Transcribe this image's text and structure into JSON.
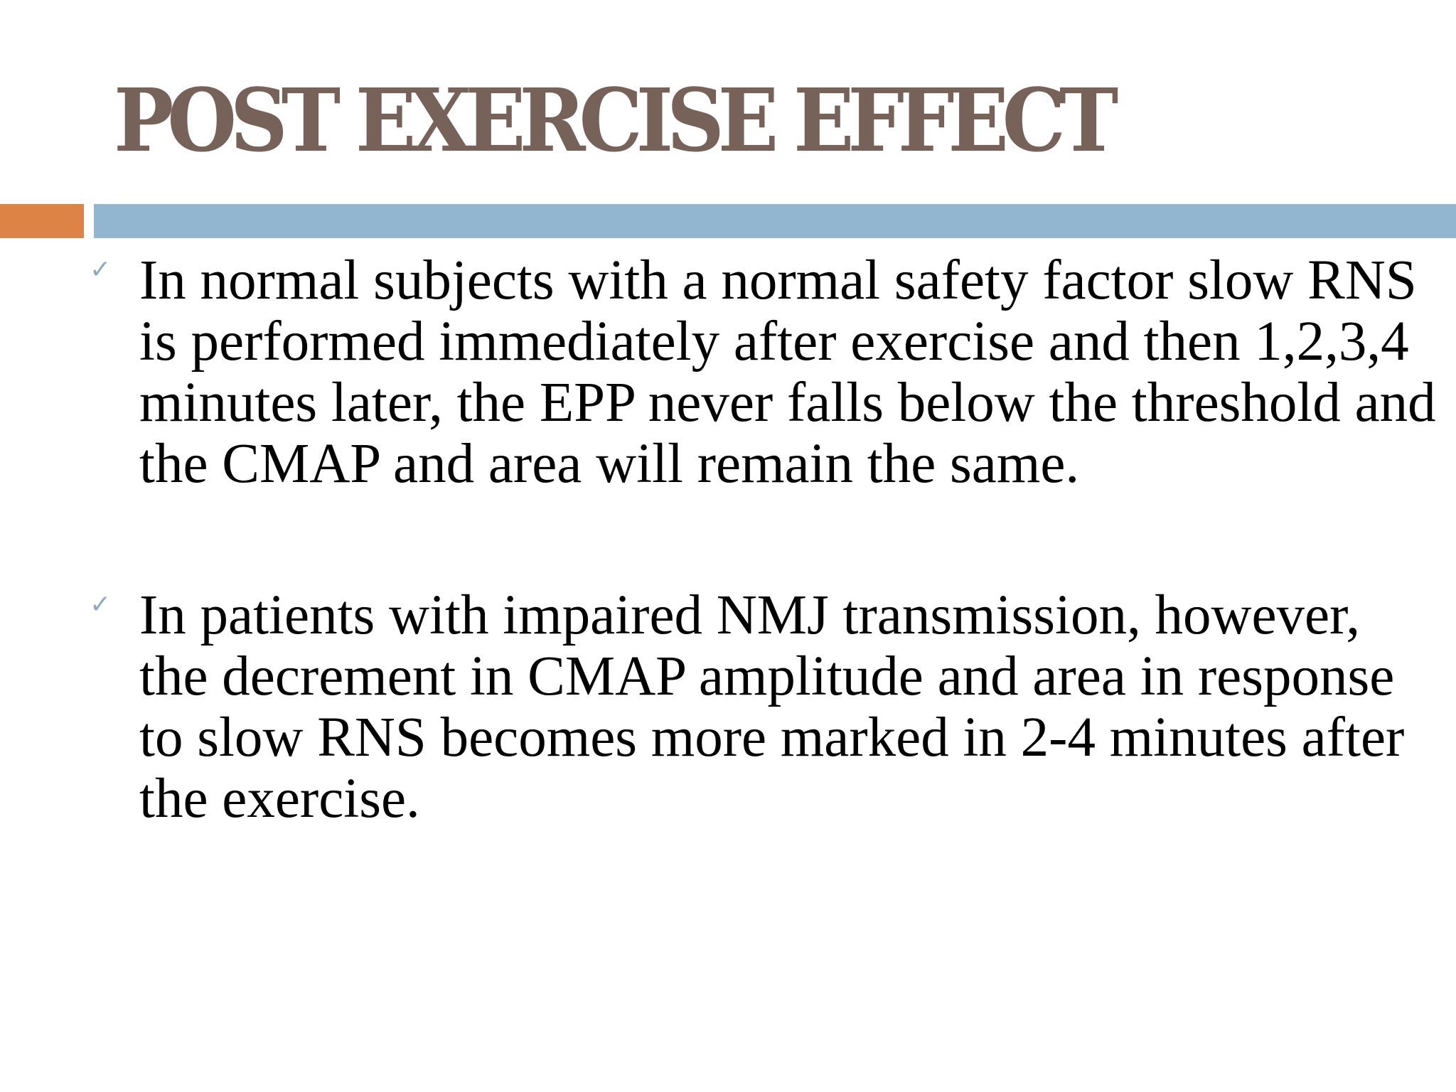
{
  "slide": {
    "title": "POST EXERCISE EFFECT",
    "bullets": [
      {
        "icon": "check-icon",
        "text": "In normal subjects with a normal safety factor slow RNS is performed immediately after exercise and then 1,2,3,4 minutes later, the EPP never falls below the threshold and the CMAP and area will remain the same."
      },
      {
        "icon": "check-icon",
        "text": "In patients with impaired NMJ transmission, however, the decrement in CMAP amplitude and area in response to slow RNS becomes more marked in 2-4 minutes after the exercise."
      }
    ],
    "colors": {
      "title": "#77625a",
      "accent_bar": "#dc8345",
      "rule_bar": "#93b6d0",
      "check_icon": "#8ea8c0",
      "body_text": "#000000"
    }
  }
}
